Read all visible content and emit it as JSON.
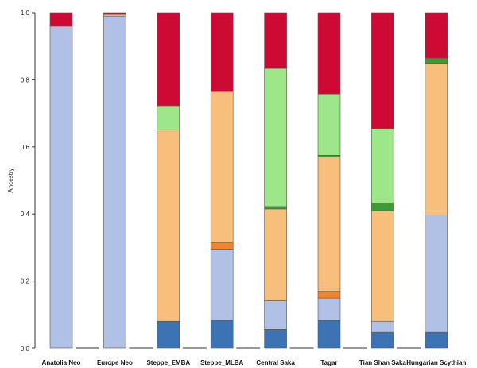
{
  "chart_data": {
    "type": "bar",
    "stacked": true,
    "title": "",
    "xlabel": "",
    "ylabel": "Ancestry",
    "ylim": [
      0,
      1
    ],
    "yticks": [
      "0.0",
      "0.2",
      "0.4",
      "0.6",
      "0.8",
      "1.0"
    ],
    "grid": false,
    "legend": "none",
    "categories": [
      "Anatolia Neo",
      "Europe Neo",
      "Steppe_EMBA",
      "Steppe_MLBA",
      "Central Saka",
      "Tagar",
      "Tian Shan Saka",
      "Hungarian Scythian"
    ],
    "series": [
      {
        "color": "#3c73b5",
        "values": [
          0.0,
          0.0,
          0.08,
          0.083,
          0.056,
          0.083,
          0.047,
          0.047
        ]
      },
      {
        "color": "#b0c1e5",
        "values": [
          0.96,
          0.99,
          0.0,
          0.212,
          0.085,
          0.066,
          0.033,
          0.35
        ]
      },
      {
        "color": "#f2832f",
        "values": [
          0.0,
          0.0,
          0.0,
          0.02,
          0.0,
          0.02,
          0.0,
          0.0
        ]
      },
      {
        "color": "#f8bf7c",
        "values": [
          0.0,
          0.005,
          0.57,
          0.45,
          0.274,
          0.401,
          0.33,
          0.452
        ]
      },
      {
        "color": "#3e9b36",
        "values": [
          0.0,
          0.0,
          0.0,
          0.0,
          0.007,
          0.005,
          0.023,
          0.016
        ]
      },
      {
        "color": "#9de68a",
        "values": [
          0.0,
          0.0,
          0.073,
          0.0,
          0.412,
          0.183,
          0.222,
          0.0
        ]
      },
      {
        "color": "#cc0a34",
        "values": [
          0.04,
          0.005,
          0.277,
          0.235,
          0.166,
          0.242,
          0.345,
          0.135
        ]
      }
    ]
  }
}
